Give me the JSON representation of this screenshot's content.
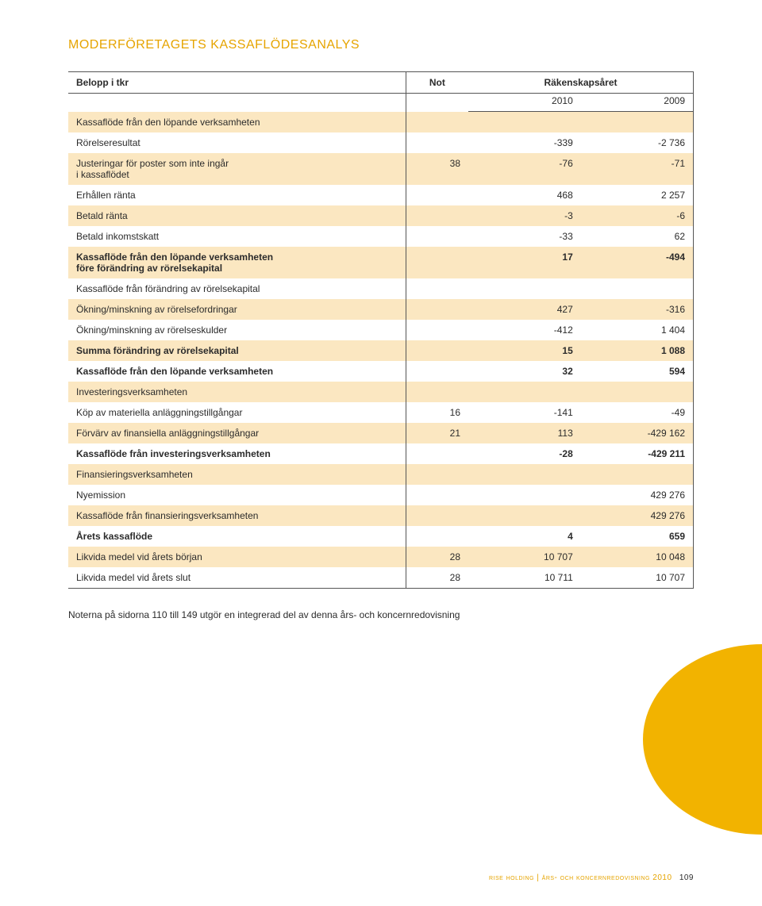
{
  "colors": {
    "accent": "#e6a400",
    "row_tint": "#fbe7c1",
    "border": "#555555",
    "text": "#2b2b2b",
    "blob": "#f2b300",
    "background": "#ffffff"
  },
  "title": "MODERFÖRETAGETS KASSAFLÖDESANALYS",
  "table": {
    "headers": {
      "label": "Belopp i tkr",
      "not": "Not",
      "period_header": "Räkenskapsåret",
      "year1": "2010",
      "year2": "2009"
    },
    "rows": [
      {
        "label": "Kassaflöde från den löpande verksamheten",
        "not": "",
        "y1": "",
        "y2": "",
        "tint": true,
        "bold": false
      },
      {
        "label": "Rörelseresultat",
        "not": "",
        "y1": "-339",
        "y2": "-2 736",
        "tint": false,
        "bold": false
      },
      {
        "label": "Justeringar för poster som inte ingår\ni kassaflödet",
        "not": "38",
        "y1": "-76",
        "y2": "-71",
        "tint": true,
        "bold": false
      },
      {
        "label": "Erhållen ränta",
        "not": "",
        "y1": "468",
        "y2": "2 257",
        "tint": false,
        "bold": false
      },
      {
        "label": "Betald ränta",
        "not": "",
        "y1": "-3",
        "y2": "-6",
        "tint": true,
        "bold": false
      },
      {
        "label": "Betald inkomstskatt",
        "not": "",
        "y1": "-33",
        "y2": "62",
        "tint": false,
        "bold": false
      },
      {
        "label": "Kassaflöde från den löpande verksamheten\nföre förändring av rörelsekapital",
        "not": "",
        "y1": "17",
        "y2": "-494",
        "tint": true,
        "bold": true
      },
      {
        "label": "Kassaflöde från förändring av rörelsekapital",
        "not": "",
        "y1": "",
        "y2": "",
        "tint": false,
        "bold": false
      },
      {
        "label": "Ökning/minskning av rörelsefordringar",
        "not": "",
        "y1": "427",
        "y2": "-316",
        "tint": true,
        "bold": false
      },
      {
        "label": "Ökning/minskning av rörelseskulder",
        "not": "",
        "y1": "-412",
        "y2": "1 404",
        "tint": false,
        "bold": false
      },
      {
        "label": "Summa förändring av rörelsekapital",
        "not": "",
        "y1": "15",
        "y2": "1 088",
        "tint": true,
        "bold": true
      },
      {
        "label": "Kassaflöde från den löpande verksamheten",
        "not": "",
        "y1": "32",
        "y2": "594",
        "tint": false,
        "bold": true
      },
      {
        "label": "Investeringsverksamheten",
        "not": "",
        "y1": "",
        "y2": "",
        "tint": true,
        "bold": false
      },
      {
        "label": "Köp av materiella anläggningstillgångar",
        "not": "16",
        "y1": "-141",
        "y2": "-49",
        "tint": false,
        "bold": false
      },
      {
        "label": "Förvärv av finansiella anläggningstillgångar",
        "not": "21",
        "y1": "113",
        "y2": "-429 162",
        "tint": true,
        "bold": false
      },
      {
        "label": "Kassaflöde från investeringsverksamheten",
        "not": "",
        "y1": "-28",
        "y2": "-429 211",
        "tint": false,
        "bold": true
      },
      {
        "label": "Finansieringsverksamheten",
        "not": "",
        "y1": "",
        "y2": "",
        "tint": true,
        "bold": false
      },
      {
        "label": "Nyemission",
        "not": "",
        "y1": "",
        "y2": "429 276",
        "tint": false,
        "bold": false
      },
      {
        "label": "Kassaflöde från finansieringsverksamheten",
        "not": "",
        "y1": "",
        "y2": "429 276",
        "tint": true,
        "bold": false
      },
      {
        "label": "Årets kassaflöde",
        "not": "",
        "y1": "4",
        "y2": "659",
        "tint": false,
        "bold": true
      },
      {
        "label": "Likvida medel vid årets början",
        "not": "28",
        "y1": "10 707",
        "y2": "10 048",
        "tint": true,
        "bold": false
      },
      {
        "label": "Likvida medel vid årets slut",
        "not": "28",
        "y1": "10 711",
        "y2": "10 707",
        "tint": false,
        "bold": false
      }
    ]
  },
  "note": "Noterna på sidorna 110 till 149 utgör en integrerad del av denna års- och koncernredovisning",
  "footer": {
    "text": "rise holding | års- och koncernredovisning 2010",
    "page": "109"
  }
}
